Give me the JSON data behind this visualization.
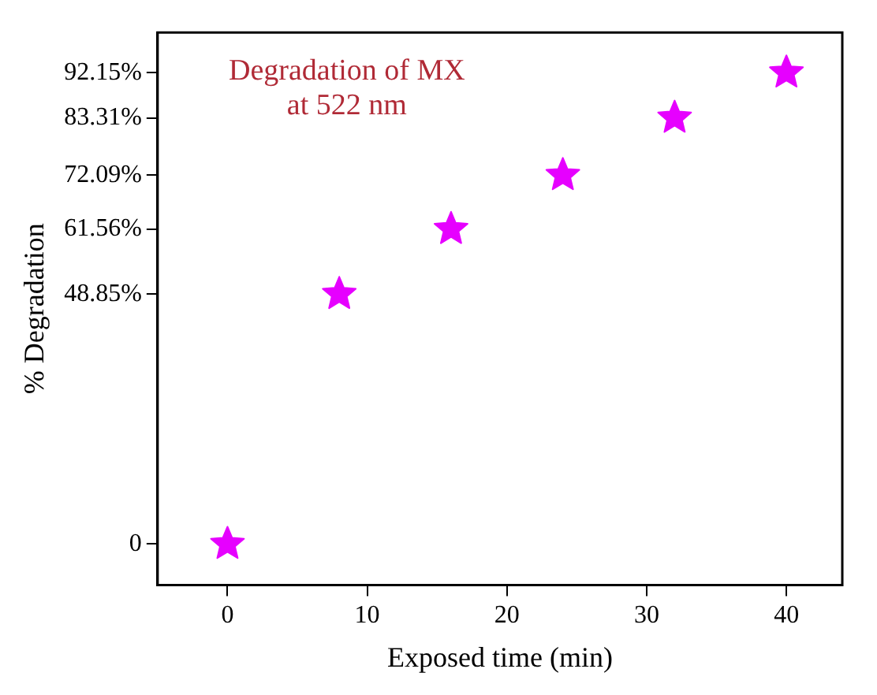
{
  "chart_data": {
    "type": "scatter",
    "xlabel": "Exposed time (min)",
    "ylabel": "% Degradation",
    "annotations": [
      "Degradation of MX\nat 522 nm"
    ],
    "x": [
      0,
      8,
      16,
      24,
      32,
      40
    ],
    "series": [
      {
        "color": "#e600ff",
        "values": [
          0,
          48.85,
          61.56,
          72.09,
          83.31,
          92.15
        ]
      }
    ],
    "xlim": [
      -5,
      44
    ],
    "xticks": [
      0,
      10,
      20,
      30,
      40
    ],
    "ylim": [
      -8,
      100
    ],
    "yticks": [
      {
        "value": 0,
        "label": "0"
      },
      {
        "value": 48.85,
        "label": "48.85%"
      },
      {
        "value": 61.56,
        "label": "61.56%"
      },
      {
        "value": 72.09,
        "label": "72.09%"
      },
      {
        "value": 83.31,
        "label": "83.31%"
      },
      {
        "value": 92.15,
        "label": "92.15%"
      }
    ],
    "marker": "star",
    "grid": false,
    "legend": false
  }
}
